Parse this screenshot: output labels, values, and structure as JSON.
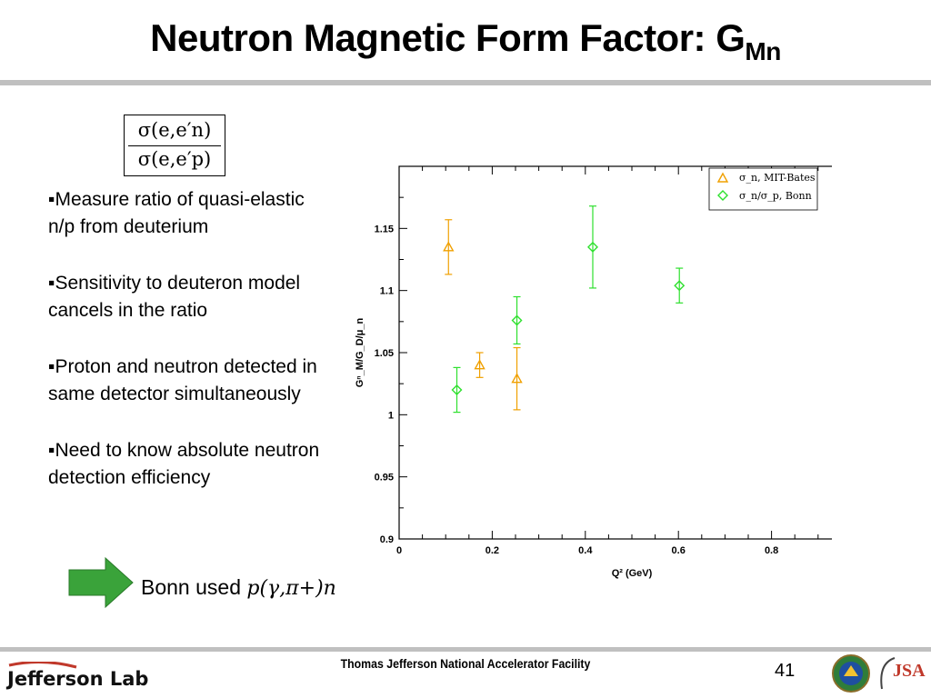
{
  "slide": {
    "title": "Neutron Magnetic Form Factor: G",
    "title_sub": "Mn",
    "fraction": {
      "numerator": "σ(e,e′n)",
      "denominator": "σ(e,e′p)"
    },
    "bullets": [
      "▪Measure ratio of quasi-elastic n/p from deuterium",
      "▪Sensitivity to deuteron model cancels in the ratio",
      "▪Proton and neutron detected in same detector simultaneously",
      "▪Need to know absolute neutron detection efficiency"
    ],
    "note_prefix": "Bonn used ",
    "note_reaction": "p(γ,π+)n",
    "footer": "Thomas Jefferson National Accelerator Facility",
    "page_number": "41",
    "logo_text": "Jefferson Lab",
    "partner_logo_text": "JSA"
  },
  "colors": {
    "mit_bates": "#f0a000",
    "bonn": "#2ee02e",
    "arrow": "#3aa33a",
    "rule": "#c0c0c0"
  },
  "chart_data": {
    "type": "scatter",
    "xlabel": "Q² (GeV)",
    "ylabel": "Gⁿ_M/G_D/μ_n",
    "xlim": [
      0,
      1
    ],
    "ylim": [
      0.9,
      1.2
    ],
    "x_ticks": [
      "0",
      "0.2",
      "0.4",
      "0.6",
      "0.8",
      "1"
    ],
    "y_ticks": [
      "0.9",
      "0.95",
      "1",
      "1.05",
      "1.1",
      "1.15"
    ],
    "grid": false,
    "legend_position": "top-right",
    "series": [
      {
        "name": "σ_n, MIT-Bates",
        "marker": "triangle",
        "color": "#f0a000",
        "points": [
          {
            "x": 0.106,
            "y": 1.135,
            "err": 0.022
          },
          {
            "x": 0.173,
            "y": 1.04,
            "err": 0.01
          },
          {
            "x": 0.253,
            "y": 1.029,
            "err": 0.025
          }
        ]
      },
      {
        "name": "σ_n/σ_p, Bonn",
        "marker": "diamond",
        "color": "#2ee02e",
        "points": [
          {
            "x": 0.124,
            "y": 1.02,
            "err": 0.018
          },
          {
            "x": 0.253,
            "y": 1.076,
            "err": 0.019
          },
          {
            "x": 0.416,
            "y": 1.135,
            "err": 0.033
          },
          {
            "x": 0.602,
            "y": 1.104,
            "err": 0.014
          }
        ]
      }
    ]
  }
}
